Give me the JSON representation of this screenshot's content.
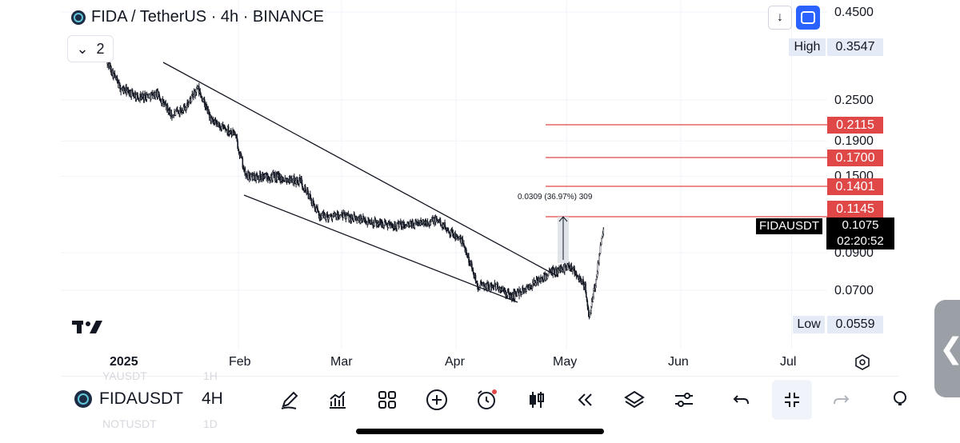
{
  "header": {
    "title": "FIDA / TetherUS · 4h · BINANCE",
    "indicator_count": "2"
  },
  "chart_data": {
    "type": "candlestick",
    "symbol": "FIDAUSDT",
    "y_scale": "log",
    "y_ticks": [
      "0.4500",
      "0.2500",
      "0.1900",
      "0.1500",
      "0.0900",
      "0.0700"
    ],
    "x_ticks": [
      "2025",
      "Feb",
      "Mar",
      "Apr",
      "May",
      "Jun",
      "Jul"
    ],
    "high": {
      "label": "High",
      "value": "0.3547"
    },
    "low": {
      "label": "Low",
      "value": "0.0559"
    },
    "current": {
      "symbol": "FIDAUSDT",
      "price": "0.1075",
      "countdown": "02:20:52"
    },
    "resistance_levels": [
      "0.2115",
      "0.1700",
      "0.1401",
      "0.1145"
    ],
    "measurement": "0.0309 (36.97%) 309",
    "approx_path": [
      {
        "date": "2024-12-27",
        "price": 0.33
      },
      {
        "date": "2024-12-31",
        "price": 0.27
      },
      {
        "date": "2025-01-05",
        "price": 0.255
      },
      {
        "date": "2025-01-10",
        "price": 0.26
      },
      {
        "date": "2025-01-14",
        "price": 0.225
      },
      {
        "date": "2025-01-18",
        "price": 0.24
      },
      {
        "date": "2025-01-21",
        "price": 0.27
      },
      {
        "date": "2025-01-25",
        "price": 0.215
      },
      {
        "date": "2025-01-31",
        "price": 0.2
      },
      {
        "date": "2025-02-03",
        "price": 0.15
      },
      {
        "date": "2025-02-10",
        "price": 0.15
      },
      {
        "date": "2025-02-18",
        "price": 0.145
      },
      {
        "date": "2025-02-23",
        "price": 0.115
      },
      {
        "date": "2025-03-02",
        "price": 0.115
      },
      {
        "date": "2025-03-10",
        "price": 0.11
      },
      {
        "date": "2025-03-18",
        "price": 0.108
      },
      {
        "date": "2025-03-27",
        "price": 0.112
      },
      {
        "date": "2025-04-03",
        "price": 0.096
      },
      {
        "date": "2025-04-07",
        "price": 0.072
      },
      {
        "date": "2025-04-12",
        "price": 0.072
      },
      {
        "date": "2025-04-16",
        "price": 0.067
      },
      {
        "date": "2025-04-22",
        "price": 0.073
      },
      {
        "date": "2025-04-26",
        "price": 0.078
      },
      {
        "date": "2025-04-30",
        "price": 0.081
      },
      {
        "date": "2025-05-02",
        "price": 0.083
      },
      {
        "date": "2025-05-06",
        "price": 0.072
      },
      {
        "date": "2025-05-07",
        "price": 0.058
      },
      {
        "date": "2025-05-09",
        "price": 0.075
      },
      {
        "date": "2025-05-11",
        "price": 0.1075
      }
    ]
  },
  "toolbar": {
    "symbol": "FIDAUSDT",
    "interval": "4H"
  },
  "ghost_items": {
    "above_symbol": "YAUSDT",
    "above_interval": "1H",
    "below_symbol": "NOTUSDT",
    "below_interval": "1D"
  },
  "colors": {
    "accent": "#2962ff",
    "level": "#e04848",
    "candle": "#131722"
  }
}
